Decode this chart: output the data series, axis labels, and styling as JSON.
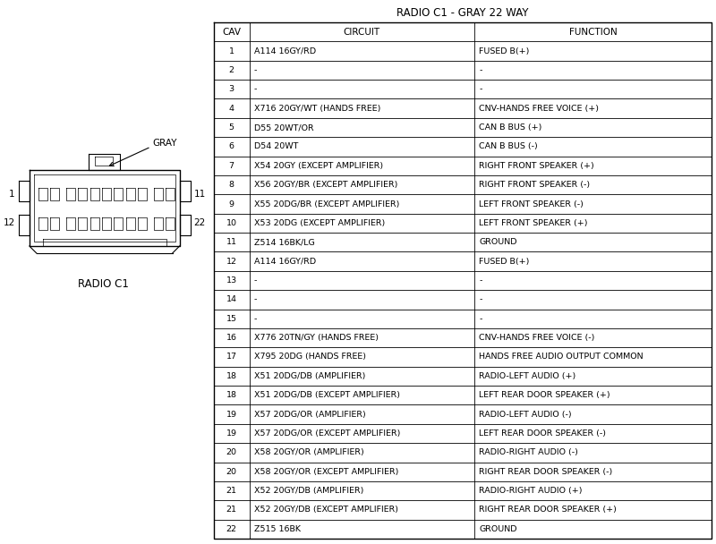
{
  "title": "RADIO C1 - GRAY 22 WAY",
  "headers": [
    "CAV",
    "CIRCUIT",
    "FUNCTION"
  ],
  "rows": [
    [
      "1",
      "A114 16GY/RD",
      "FUSED B(+)"
    ],
    [
      "2",
      "-",
      "-"
    ],
    [
      "3",
      "-",
      "-"
    ],
    [
      "4",
      "X716 20GY/WT (HANDS FREE)",
      "CNV-HANDS FREE VOICE (+)"
    ],
    [
      "5",
      "D55 20WT/OR",
      "CAN B BUS (+)"
    ],
    [
      "6",
      "D54 20WT",
      "CAN B BUS (-)"
    ],
    [
      "7",
      "X54 20GY (EXCEPT AMPLIFIER)",
      "RIGHT FRONT SPEAKER (+)"
    ],
    [
      "8",
      "X56 20GY/BR (EXCEPT AMPLIFIER)",
      "RIGHT FRONT SPEAKER (-)"
    ],
    [
      "9",
      "X55 20DG/BR (EXCEPT AMPLIFIER)",
      "LEFT FRONT SPEAKER (-)"
    ],
    [
      "10",
      "X53 20DG (EXCEPT AMPLIFIER)",
      "LEFT FRONT SPEAKER (+)"
    ],
    [
      "11",
      "Z514 16BK/LG",
      "GROUND"
    ],
    [
      "12",
      "A114 16GY/RD",
      "FUSED B(+)"
    ],
    [
      "13",
      "-",
      "-"
    ],
    [
      "14",
      "-",
      "-"
    ],
    [
      "15",
      "-",
      "-"
    ],
    [
      "16",
      "X776 20TN/GY (HANDS FREE)",
      "CNV-HANDS FREE VOICE (-)"
    ],
    [
      "17",
      "X795 20DG (HANDS FREE)",
      "HANDS FREE AUDIO OUTPUT COMMON"
    ],
    [
      "18",
      "X51 20DG/DB (AMPLIFIER)",
      "RADIO-LEFT AUDIO (+)"
    ],
    [
      "18",
      "X51 20DG/DB (EXCEPT AMPLIFIER)",
      "LEFT REAR DOOR SPEAKER (+)"
    ],
    [
      "19",
      "X57 20DG/OR (AMPLIFIER)",
      "RADIO-LEFT AUDIO (-)"
    ],
    [
      "19",
      "X57 20DG/OR (EXCEPT AMPLIFIER)",
      "LEFT REAR DOOR SPEAKER (-)"
    ],
    [
      "20",
      "X58 20GY/OR (AMPLIFIER)",
      "RADIO-RIGHT AUDIO (-)"
    ],
    [
      "20",
      "X58 20GY/OR (EXCEPT AMPLIFIER)",
      "RIGHT REAR DOOR SPEAKER (-)"
    ],
    [
      "21",
      "X52 20GY/DB (AMPLIFIER)",
      "RADIO-RIGHT AUDIO (+)"
    ],
    [
      "21",
      "X52 20GY/DB (EXCEPT AMPLIFIER)",
      "RIGHT REAR DOOR SPEAKER (+)"
    ],
    [
      "22",
      "Z515 16BK",
      "GROUND"
    ]
  ],
  "bg_color": "#ffffff",
  "line_color": "#000000",
  "text_color": "#000000",
  "title_fontsize": 8.5,
  "header_fontsize": 7.5,
  "cell_fontsize": 6.8,
  "connector_label": "RADIO C1",
  "gray_label": "GRAY"
}
